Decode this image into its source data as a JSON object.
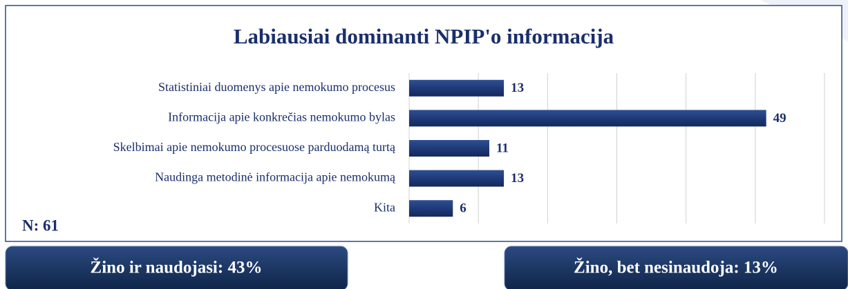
{
  "chart_data": {
    "type": "bar",
    "orientation": "horizontal",
    "title": "Labiausiai dominanti NPIP'o informacija",
    "categories": [
      "Statistiniai duomenys apie nemokumo procesus",
      "Informacija apie konkrečias nemokumo bylas",
      "Skelbimai apie nemokumo procesuose parduodamą turtą",
      "Naudinga metodinė informacija apie nemokumą",
      "Kita"
    ],
    "values": [
      13,
      49,
      11,
      13,
      6
    ],
    "color": "#1f3a78",
    "xlim": [
      0,
      57
    ],
    "xticks": [
      0,
      9.5,
      19,
      28.5,
      38,
      47.5,
      57
    ],
    "grid": true,
    "annotation": "N: 61"
  },
  "boxes": [
    "Žino ir naudojasi: 43%",
    "Žino, bet nesinaudoja: 13%"
  ]
}
